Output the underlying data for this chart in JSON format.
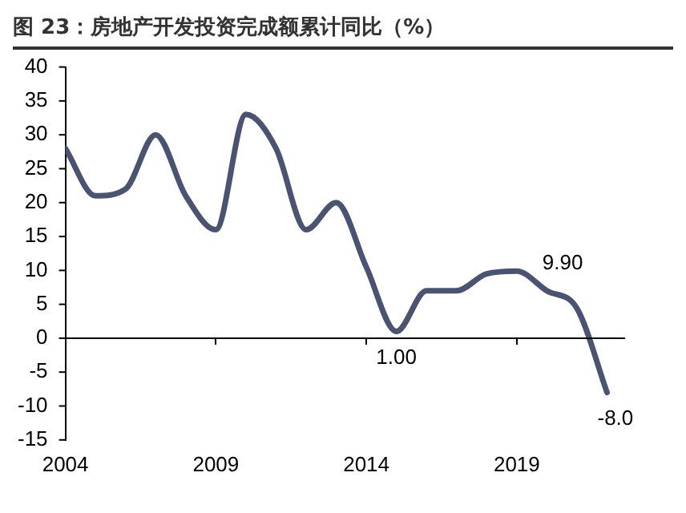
{
  "chart_data": {
    "type": "line",
    "title": "图 23：房地产开发投资完成额累计同比（%）",
    "x": [
      2004,
      2005,
      2006,
      2007,
      2008,
      2009,
      2010,
      2011,
      2012,
      2013,
      2014,
      2015,
      2016,
      2017,
      2018,
      2019,
      2020,
      2021,
      2022
    ],
    "series": [
      {
        "color": "#4a5372",
        "values": [
          28,
          21,
          22,
          30,
          21,
          16,
          33,
          28,
          16,
          20,
          10.5,
          1.0,
          7,
          7,
          9.5,
          9.9,
          7,
          4.4,
          -8.0
        ],
        "value_labels": [
          null,
          null,
          null,
          null,
          null,
          null,
          null,
          null,
          null,
          null,
          null,
          "1.00",
          null,
          null,
          null,
          "9.90",
          null,
          null,
          "-8.0"
        ]
      }
    ],
    "xlim": [
      2004,
      2022.6
    ],
    "xticks": [
      2004,
      2009,
      2014,
      2019
    ],
    "ylim": [
      -15,
      40
    ],
    "yticks": [
      -15,
      -10,
      -5,
      0,
      5,
      10,
      15,
      20,
      25,
      30,
      35,
      40
    ],
    "ref_lines": [
      {
        "axis": "y",
        "value": 0,
        "color": "#000000"
      }
    ],
    "grid": false,
    "legend": false,
    "marker": "none",
    "line_style": "solid"
  }
}
